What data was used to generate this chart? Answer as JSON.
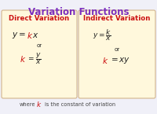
{
  "title": "Variation Functions",
  "title_color": "#7B2FBE",
  "title_fontsize": 8.5,
  "bg_color": "#F0F0F8",
  "box_color": "#FFF8DC",
  "box_edge_color": "#D2B48C",
  "left_header": "Direct Variation",
  "right_header": "Indirect Variation",
  "header_color": "#CC1111",
  "header_fontsize": 6.2,
  "formula_color_black": "#222222",
  "formula_color_red": "#CC1111",
  "footer_text_color": "#444444",
  "footer_fontsize": 4.8,
  "or_fontsize": 5.0,
  "formula_fontsize": 7.5
}
